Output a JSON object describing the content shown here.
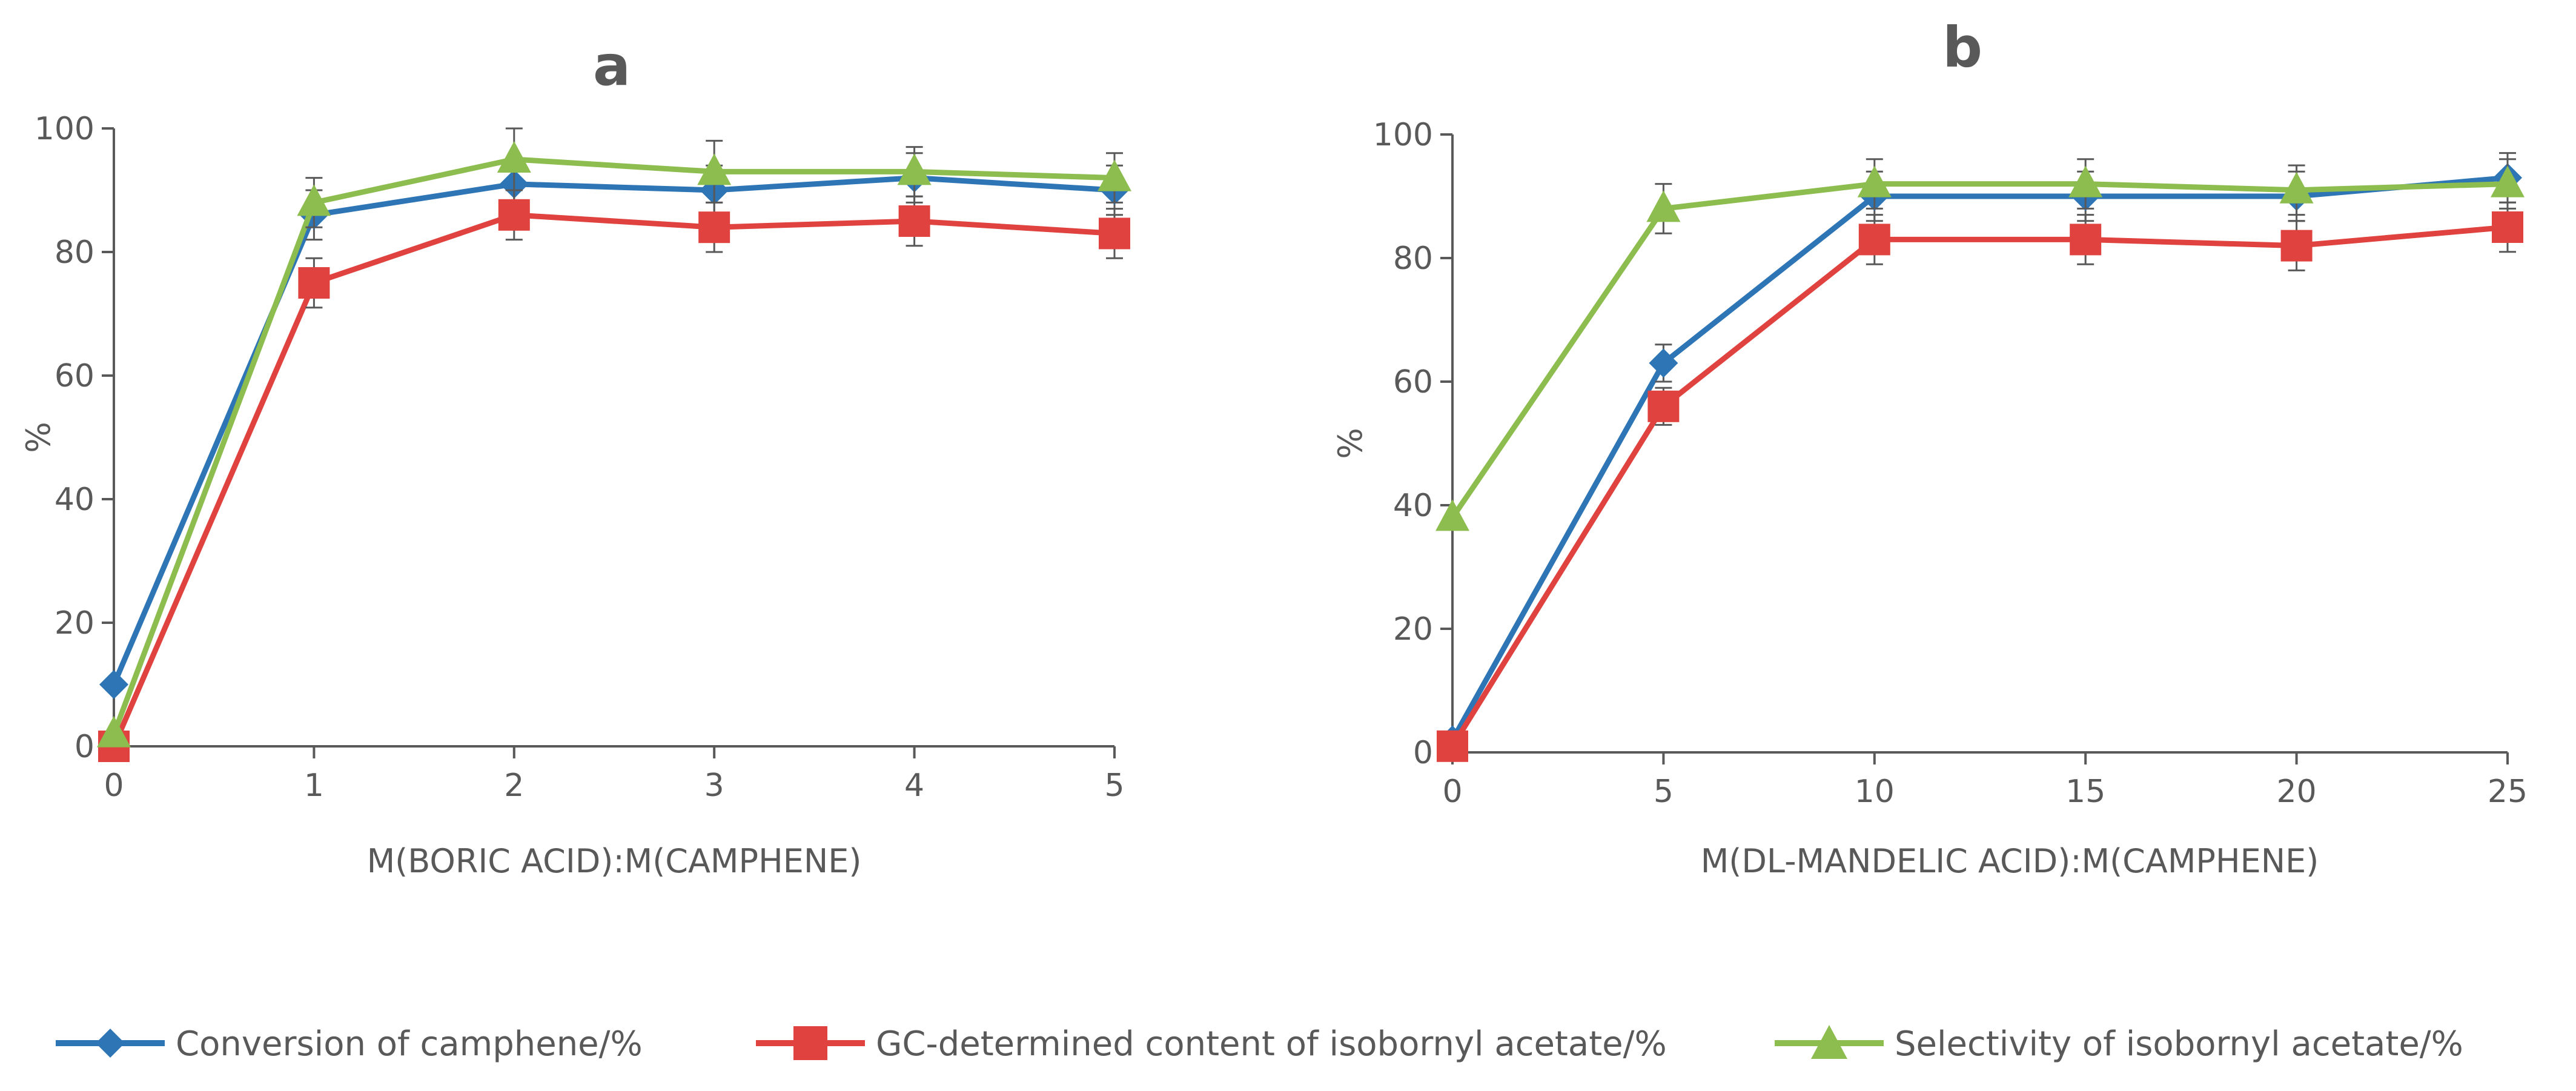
{
  "chart_data": [
    {
      "panel": "a",
      "type": "line",
      "title": "a",
      "xlabel": "M(BORIC ACID):M(CAMPHENE)",
      "ylabel": "%",
      "x": [
        0,
        1,
        2,
        3,
        4,
        5
      ],
      "xlim": [
        0,
        5
      ],
      "ylim": [
        0,
        100
      ],
      "yticks": [
        0,
        20,
        40,
        60,
        80,
        100
      ],
      "xticks": [
        0,
        1,
        2,
        3,
        4,
        5
      ],
      "series": [
        {
          "name": "Conversion of camphene/%",
          "color": "#2E75B6",
          "marker": "diamond",
          "values": [
            10,
            86,
            91,
            90,
            92,
            90
          ],
          "errors": [
            0,
            4,
            4,
            4,
            4,
            4
          ]
        },
        {
          "name": "GC-determined content of isobornyl acetate/%",
          "color": "#E0433F",
          "marker": "square",
          "values": [
            0,
            75,
            86,
            84,
            85,
            83
          ],
          "errors": [
            0,
            4,
            4,
            4,
            4,
            4
          ]
        },
        {
          "name": "Selectivity of isobornyl acetate/%",
          "color": "#8CBD4E",
          "marker": "triangle",
          "values": [
            2,
            88,
            95,
            93,
            93,
            92
          ],
          "errors": [
            0,
            4,
            5,
            5,
            4,
            4
          ]
        }
      ]
    },
    {
      "panel": "b",
      "type": "line",
      "title": "b",
      "xlabel": "M(DL-MANDELIC ACID):M(CAMPHENE)",
      "ylabel": "%",
      "x": [
        0,
        5,
        10,
        15,
        20,
        25
      ],
      "xlim": [
        0,
        25
      ],
      "ylim": [
        0,
        100
      ],
      "yticks": [
        0,
        20,
        40,
        60,
        80,
        100
      ],
      "xticks": [
        0,
        5,
        10,
        15,
        20,
        25
      ],
      "series": [
        {
          "name": "Conversion of camphene/%",
          "color": "#2E75B6",
          "marker": "diamond",
          "values": [
            2,
            63,
            90,
            90,
            90,
            93
          ],
          "errors": [
            0,
            3,
            4,
            4,
            4,
            4
          ]
        },
        {
          "name": "GC-determined content of isobornyl acetate/%",
          "color": "#E0433F",
          "marker": "square",
          "values": [
            1,
            56,
            83,
            83,
            82,
            85
          ],
          "errors": [
            0,
            3,
            4,
            4,
            4,
            4
          ]
        },
        {
          "name": "Selectivity of isobornyl acetate/%",
          "color": "#8CBD4E",
          "marker": "triangle",
          "values": [
            38,
            88,
            92,
            92,
            91,
            92
          ],
          "errors": [
            0,
            4,
            4,
            4,
            4,
            4
          ]
        }
      ]
    }
  ],
  "legend": {
    "items": [
      {
        "label": "Conversion of camphene/%",
        "color": "#2E75B6",
        "marker": "diamond"
      },
      {
        "label": "GC-determined content of isobornyl acetate/%",
        "color": "#E0433F",
        "marker": "square"
      },
      {
        "label": "Selectivity of isobornyl acetate/%",
        "color": "#8CBD4E",
        "marker": "triangle"
      }
    ]
  },
  "style": {
    "axis_color": "#595959",
    "grid": false
  }
}
